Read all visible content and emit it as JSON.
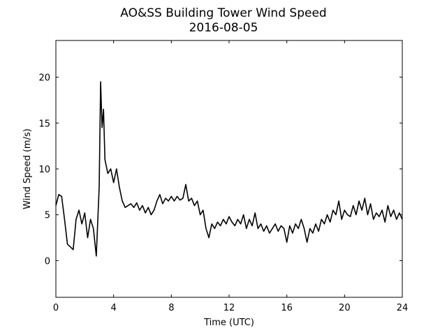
{
  "chart_data": {
    "type": "line",
    "title": "AO&SS Building Tower Wind Speed",
    "subtitle": "2016-08-05",
    "x_label": "Time (UTC)",
    "y_label": "Wind Speed (m/s)",
    "xlim": [
      0,
      24
    ],
    "xticks": [
      0,
      4,
      8,
      12,
      16,
      20,
      24
    ],
    "ylim": [
      -4,
      24
    ],
    "yticks": [
      0,
      5,
      10,
      15,
      20
    ],
    "grid": false,
    "series": [
      {
        "color": "#000000",
        "x": [
          0,
          0.2,
          0.4,
          0.6,
          0.8,
          1.0,
          1.2,
          1.4,
          1.6,
          1.8,
          2.0,
          2.2,
          2.4,
          2.6,
          2.8,
          3.0,
          3.1,
          3.2,
          3.3,
          3.4,
          3.6,
          3.8,
          4.0,
          4.2,
          4.4,
          4.6,
          4.8,
          5.0,
          5.2,
          5.4,
          5.6,
          5.8,
          6.0,
          6.2,
          6.4,
          6.6,
          6.8,
          7.0,
          7.2,
          7.4,
          7.6,
          7.8,
          8.0,
          8.2,
          8.4,
          8.6,
          8.8,
          9.0,
          9.2,
          9.4,
          9.6,
          9.8,
          10.0,
          10.2,
          10.4,
          10.6,
          10.8,
          11.0,
          11.2,
          11.4,
          11.6,
          11.8,
          12.0,
          12.2,
          12.4,
          12.6,
          12.8,
          13.0,
          13.2,
          13.4,
          13.6,
          13.8,
          14.0,
          14.2,
          14.4,
          14.6,
          14.8,
          15.0,
          15.2,
          15.4,
          15.6,
          15.8,
          16.0,
          16.2,
          16.4,
          16.6,
          16.8,
          17.0,
          17.2,
          17.4,
          17.6,
          17.8,
          18.0,
          18.2,
          18.4,
          18.6,
          18.8,
          19.0,
          19.2,
          19.4,
          19.6,
          19.8,
          20.0,
          20.2,
          20.4,
          20.6,
          20.8,
          21.0,
          21.2,
          21.4,
          21.6,
          21.8,
          22.0,
          22.2,
          22.4,
          22.6,
          22.8,
          23.0,
          23.2,
          23.4,
          23.6,
          23.8,
          24.0
        ],
        "values": [
          6.0,
          7.2,
          7.0,
          4.5,
          1.8,
          1.5,
          1.2,
          4.5,
          5.5,
          4.0,
          5.2,
          2.5,
          4.5,
          3.5,
          0.5,
          8.0,
          19.5,
          14.5,
          16.5,
          11.0,
          9.5,
          10.0,
          8.5,
          10.0,
          8.0,
          6.5,
          5.8,
          6.0,
          6.2,
          5.8,
          6.3,
          5.5,
          6.0,
          5.2,
          5.8,
          5.0,
          5.5,
          6.5,
          7.2,
          6.2,
          6.8,
          6.5,
          7.0,
          6.5,
          7.0,
          6.6,
          6.8,
          8.3,
          6.5,
          6.8,
          6.0,
          6.5,
          5.0,
          5.5,
          3.5,
          2.5,
          4.0,
          3.5,
          4.2,
          3.8,
          4.5,
          4.0,
          4.8,
          4.2,
          3.8,
          4.5,
          4.0,
          5.0,
          3.5,
          4.5,
          3.8,
          5.2,
          3.5,
          4.0,
          3.2,
          3.8,
          3.0,
          3.5,
          4.0,
          3.2,
          3.8,
          3.5,
          2.0,
          3.8,
          3.0,
          4.0,
          3.5,
          4.5,
          3.5,
          2.0,
          3.5,
          3.0,
          4.0,
          3.2,
          4.5,
          4.0,
          5.0,
          4.2,
          5.5,
          5.0,
          6.5,
          4.5,
          5.5,
          5.0,
          4.8,
          6.0,
          5.0,
          6.5,
          5.5,
          6.8,
          5.0,
          6.2,
          4.5,
          5.2,
          4.8,
          5.5,
          4.2,
          6.0,
          4.8,
          5.5,
          4.5,
          5.2,
          4.5
        ]
      }
    ]
  }
}
